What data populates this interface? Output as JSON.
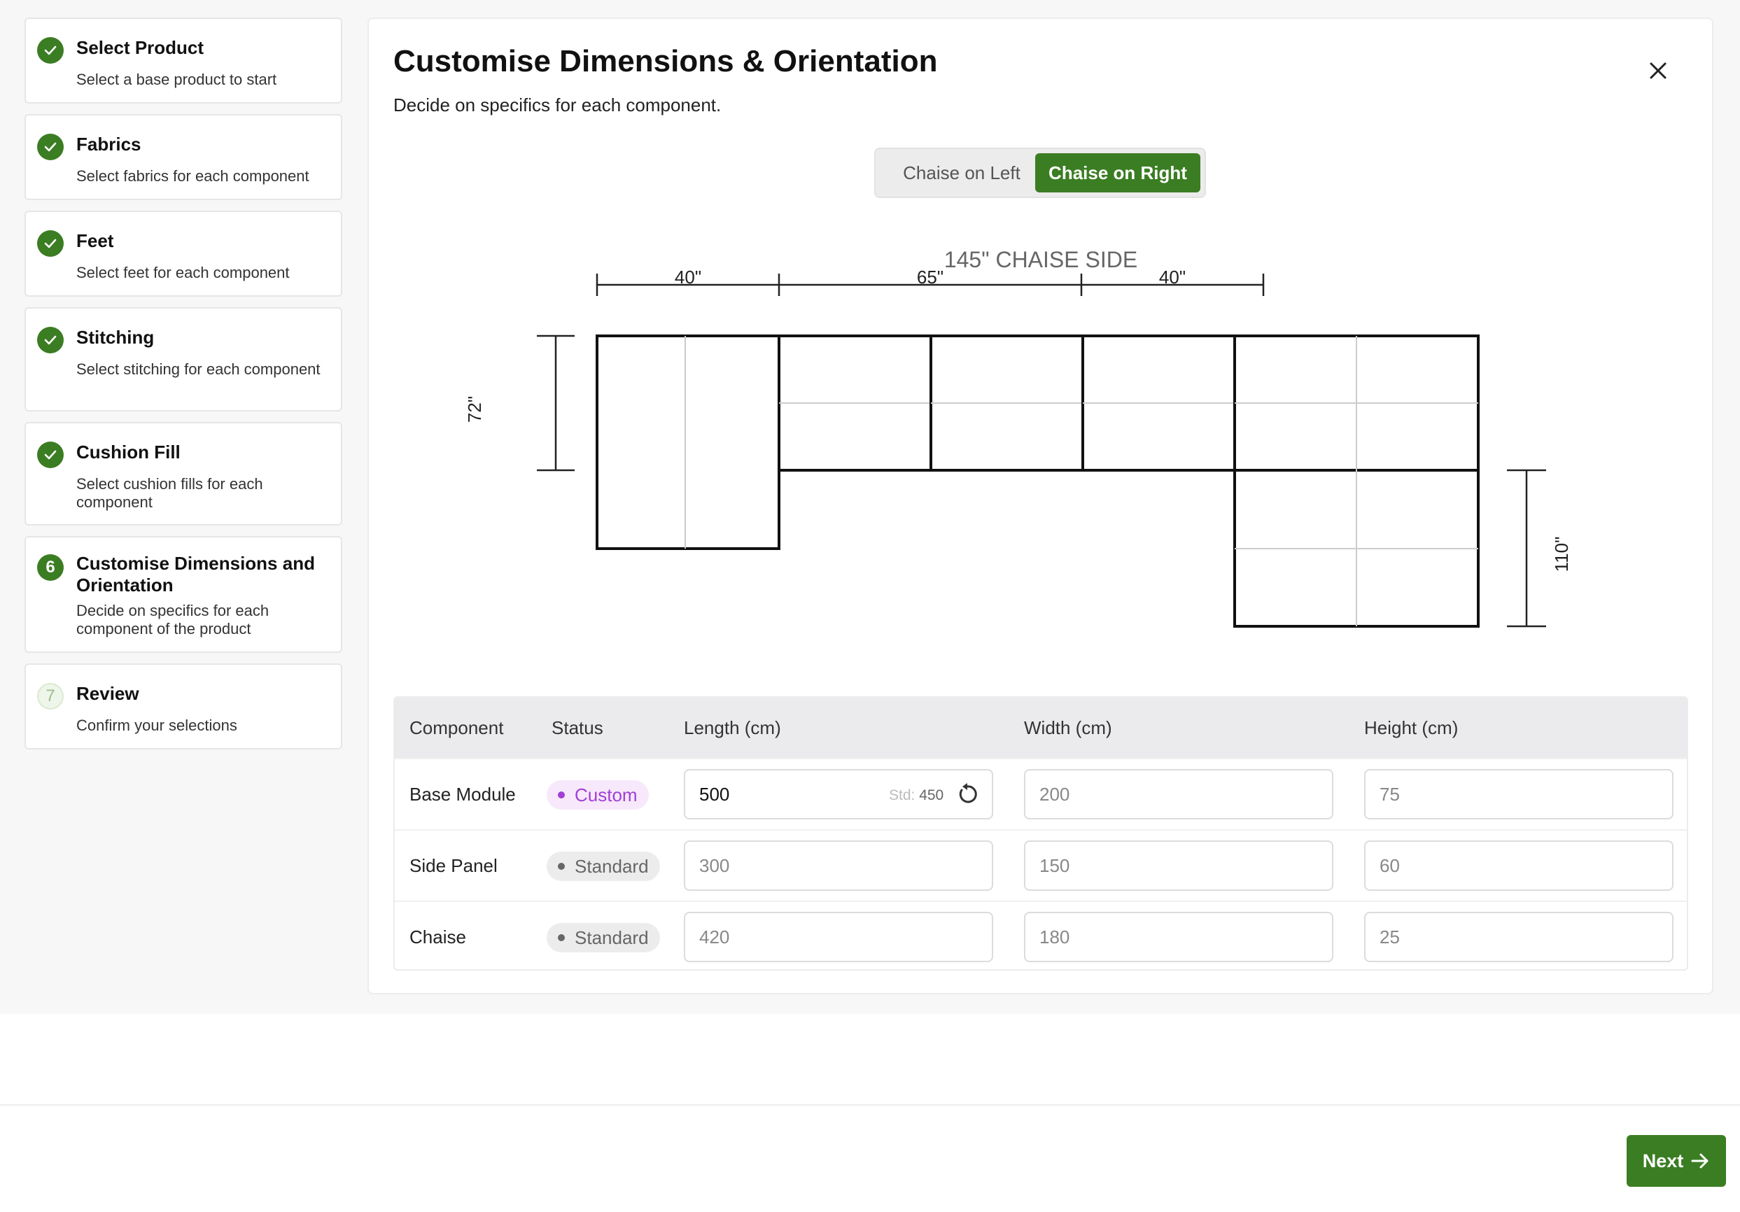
{
  "steps": [
    {
      "badge": "✓",
      "state": "done",
      "title": "Select Product",
      "desc": "Select a base product to start"
    },
    {
      "badge": "✓",
      "state": "done",
      "title": "Fabrics",
      "desc": "Select fabrics for each component"
    },
    {
      "badge": "✓",
      "state": "done",
      "title": "Feet",
      "desc": "Select feet for each component"
    },
    {
      "badge": "✓",
      "state": "done",
      "title": "Stitching",
      "desc": "Select stitching for each component"
    },
    {
      "badge": "✓",
      "state": "done",
      "title": "Cushion Fill",
      "desc": "Select cushion fills for each component"
    },
    {
      "badge": "6",
      "state": "active",
      "title": "Customise Dimensions and Orientation",
      "desc": "Decide on specifics for each component of the product"
    },
    {
      "badge": "7",
      "state": "pending",
      "title": "Review",
      "desc": "Confirm your selections"
    }
  ],
  "main": {
    "title": "Customise Dimensions & Orientation",
    "subtitle": "Decide on specifics for each component.",
    "orientation": {
      "left_label": "Chaise on Left",
      "right_label": "Chaise on Right",
      "selected": "right"
    }
  },
  "diagram": {
    "side_label": "145\" CHAISE SIDE",
    "dim_top_1": "40\"",
    "dim_top_2": "65\"",
    "dim_top_3": "40\"",
    "dim_left": "72\"",
    "dim_right": "110\""
  },
  "table": {
    "headers": {
      "component": "Component",
      "status": "Status",
      "length": "Length (cm)",
      "width": "Width (cm)",
      "height": "Height (cm)"
    },
    "rows": [
      {
        "name": "Base Module",
        "status": "Custom",
        "length": "500",
        "width": "200",
        "height": "75",
        "std_label": "Std:",
        "std_value": "450"
      },
      {
        "name": "Side Panel",
        "status": "Standard",
        "length": "300",
        "width": "150",
        "height": "60"
      },
      {
        "name": "Chaise",
        "status": "Standard",
        "length": "420",
        "width": "180",
        "height": "25"
      }
    ]
  },
  "footer": {
    "next_label": "Next"
  },
  "colors": {
    "accent": "#3b7d23",
    "custom": "#a23fd6",
    "standard": "#666666"
  }
}
